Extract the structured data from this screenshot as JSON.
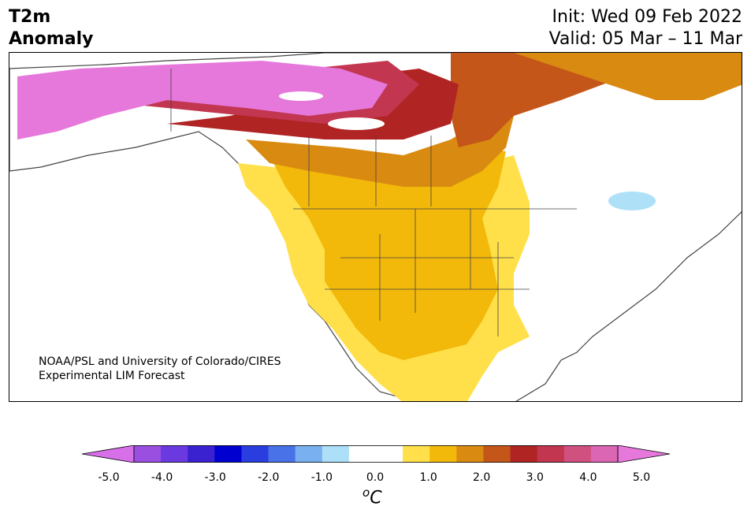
{
  "header": {
    "title_line1": "T2m",
    "title_line2": "Anomaly",
    "init": "Init: Wed 09 Feb 2022",
    "valid": "Valid: 05 Mar – 11 Mar"
  },
  "credit": {
    "line1": "NOAA/PSL and University of Colorado/CIRES",
    "line2": "Experimental LIM Forecast"
  },
  "colorbar": {
    "colors": [
      "#d770e8",
      "#9a4fe0",
      "#6a3ae0",
      "#3a22d0",
      "#0000d0",
      "#2a3ee0",
      "#4a72e8",
      "#78b0f0",
      "#ade0f8",
      "#ffffff",
      "#ffffff",
      "#ffe04a",
      "#f2b90a",
      "#d98a10",
      "#c4561a",
      "#b02424",
      "#c23650",
      "#d05080",
      "#da66b4",
      "#e678dc"
    ],
    "ticks": [
      "-5.0",
      "-4.0",
      "-3.0",
      "-2.0",
      "-1.0",
      "0.0",
      "1.0",
      "2.0",
      "3.0",
      "4.0",
      "5.0"
    ],
    "unit_base": "C",
    "unit_sup": "o"
  },
  "regions": {
    "colors": {
      "magenta": "#e678dc",
      "pink": "#da66b4",
      "rose": "#c23650",
      "red": "#b02424",
      "darkorange": "#c4561a",
      "orange": "#d98a10",
      "gold": "#f2b90a",
      "yellow": "#ffe04a",
      "lightblue": "#aee0f8"
    }
  }
}
